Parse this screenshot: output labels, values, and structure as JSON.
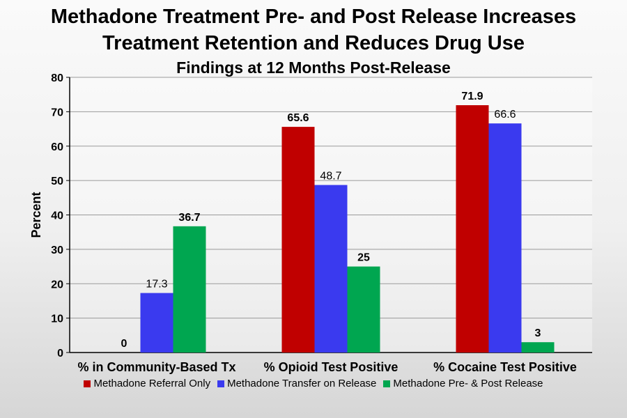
{
  "chart_data": {
    "type": "bar",
    "title": "Methadone Treatment Pre- and Post Release Increases",
    "title_line2": "Treatment Retention and Reduces Drug Use",
    "subtitle": "Findings at 12 Months Post-Release",
    "ylabel": "Percent",
    "xlabel": "",
    "ylim": [
      0,
      80
    ],
    "yticks": [
      0,
      10,
      20,
      30,
      40,
      50,
      60,
      70,
      80
    ],
    "grid": true,
    "categories": [
      "% in Community-Based Tx",
      "% Opioid Test Positive",
      "% Cocaine Test Positive"
    ],
    "series": [
      {
        "name": "Methadone Referral Only",
        "color": "#c00000",
        "values": [
          0,
          65.6,
          71.9
        ],
        "labels": [
          "0",
          "65.6",
          "71.9"
        ],
        "label_bold": true
      },
      {
        "name": "Methadone Transfer on Release",
        "color": "#3a3aef",
        "values": [
          17.3,
          48.7,
          66.6
        ],
        "labels": [
          "17.3",
          "48.7",
          "66.6"
        ],
        "label_bold": false
      },
      {
        "name": "Methadone Pre- & Post Release",
        "color": "#00a650",
        "values": [
          36.7,
          25,
          3
        ],
        "labels": [
          "36.7",
          "25",
          "3"
        ],
        "label_bold": true
      }
    ],
    "legend_position": "bottom"
  }
}
